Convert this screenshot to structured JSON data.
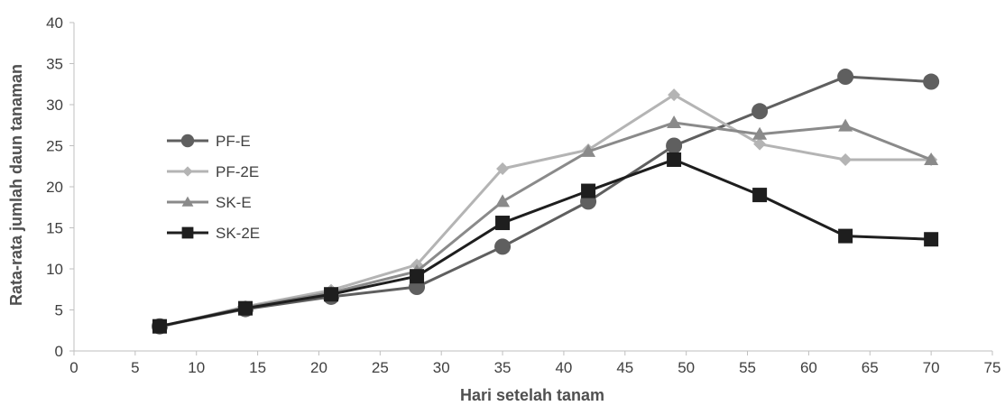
{
  "chart_data": {
    "type": "line",
    "xlabel": "Hari setelah tanam",
    "ylabel": "Rata-rata jumlah daun tanaman",
    "xlim": [
      0,
      75
    ],
    "ylim": [
      0,
      40
    ],
    "xticks": [
      "0",
      "5",
      "10",
      "15",
      "20",
      "25",
      "30",
      "35",
      "40",
      "45",
      "50",
      "55",
      "60",
      "65",
      "70",
      "75"
    ],
    "yticks": [
      "0",
      "5",
      "10",
      "15",
      "20",
      "25",
      "30",
      "35",
      "40"
    ],
    "x": [
      7,
      14,
      21,
      28,
      35,
      42,
      49,
      56,
      63,
      70
    ],
    "grid": false,
    "legend_position": "left",
    "series": [
      {
        "name": "PF-E",
        "marker": "circle",
        "color": "#5f5f5f",
        "values": [
          3.0,
          5.1,
          6.6,
          7.8,
          12.7,
          18.2,
          25.0,
          29.2,
          33.4,
          32.8
        ]
      },
      {
        "name": "PF-2E",
        "marker": "diamond",
        "color": "#b4b4b4",
        "values": [
          2.9,
          5.4,
          7.4,
          10.5,
          22.2,
          24.5,
          31.2,
          25.2,
          23.3,
          23.3
        ]
      },
      {
        "name": "SK-E",
        "marker": "triangle",
        "color": "#8a8a8a",
        "values": [
          3.0,
          5.3,
          7.1,
          9.7,
          18.2,
          24.3,
          27.8,
          26.4,
          27.4,
          23.3
        ]
      },
      {
        "name": "SK-2E",
        "marker": "square",
        "color": "#1e1e1e",
        "values": [
          3.0,
          5.2,
          6.9,
          9.1,
          15.6,
          19.5,
          23.3,
          19.0,
          14.0,
          13.6
        ]
      }
    ]
  }
}
